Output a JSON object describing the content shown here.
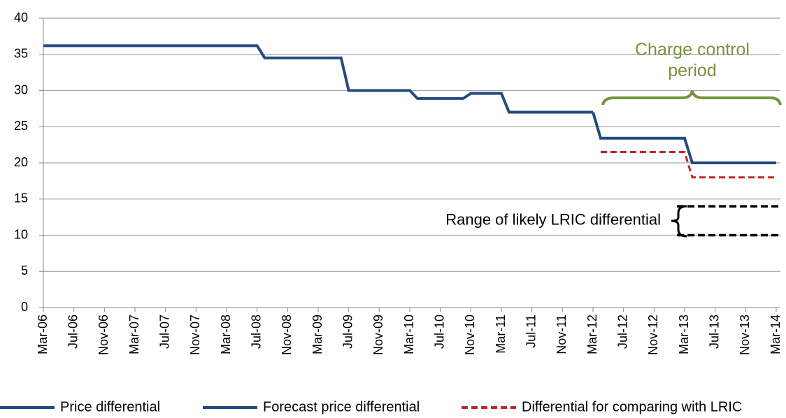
{
  "chart_data": {
    "type": "line",
    "ylim": [
      0,
      40
    ],
    "yticks": [
      0,
      5,
      10,
      15,
      20,
      25,
      30,
      35,
      40
    ],
    "xlim": [
      "2006-03",
      "2014-03"
    ],
    "xticks": [
      {
        "value": "2006-03",
        "label": "Mar-06"
      },
      {
        "value": "2006-07",
        "label": "Jul-06"
      },
      {
        "value": "2006-11",
        "label": "Nov-06"
      },
      {
        "value": "2007-03",
        "label": "Mar-07"
      },
      {
        "value": "2007-07",
        "label": "Jul-07"
      },
      {
        "value": "2007-11",
        "label": "Nov-07"
      },
      {
        "value": "2008-03",
        "label": "Mar-08"
      },
      {
        "value": "2008-07",
        "label": "Jul-08"
      },
      {
        "value": "2008-11",
        "label": "Nov-08"
      },
      {
        "value": "2009-03",
        "label": "Mar-09"
      },
      {
        "value": "2009-07",
        "label": "Jul-09"
      },
      {
        "value": "2009-11",
        "label": "Nov-09"
      },
      {
        "value": "2010-03",
        "label": "Mar-10"
      },
      {
        "value": "2010-07",
        "label": "Jul-10"
      },
      {
        "value": "2010-11",
        "label": "Nov-10"
      },
      {
        "value": "2011-03",
        "label": "Mar-11"
      },
      {
        "value": "2011-07",
        "label": "Jul-11"
      },
      {
        "value": "2011-11",
        "label": "Nov-11"
      },
      {
        "value": "2012-03",
        "label": "Mar-12"
      },
      {
        "value": "2012-07",
        "label": "Jul-12"
      },
      {
        "value": "2012-11",
        "label": "Nov-12"
      },
      {
        "value": "2013-03",
        "label": "Mar-13"
      },
      {
        "value": "2013-07",
        "label": "Jul-13"
      },
      {
        "value": "2013-11",
        "label": "Nov-13"
      },
      {
        "value": "2014-03",
        "label": "Mar-14"
      }
    ],
    "grid": true,
    "series": [
      {
        "name": "Price differential",
        "color": "#254a80",
        "style": "solid",
        "x": [
          "2006-03",
          "2008-07",
          "2008-08",
          "2009-06",
          "2009-07",
          "2010-03",
          "2010-04",
          "2010-10",
          "2010-11",
          "2011-03",
          "2011-04",
          "2012-03"
        ],
        "values": [
          36.2,
          36.2,
          34.5,
          34.5,
          30,
          30,
          28.9,
          28.9,
          29.6,
          29.6,
          27,
          27
        ]
      },
      {
        "name": "Forecast price differential",
        "color": "#254a80",
        "style": "solid",
        "x": [
          "2012-03",
          "2012-04",
          "2013-03",
          "2013-04",
          "2014-03"
        ],
        "values": [
          27,
          23.4,
          23.4,
          20,
          20
        ]
      },
      {
        "name": "Differential for comparing with LRIC",
        "color": "#c0282d",
        "style": "dashed",
        "x": [
          "2012-04",
          "2013-03",
          "2013-04",
          "2014-03"
        ],
        "values": [
          21.5,
          21.5,
          18,
          18
        ]
      }
    ],
    "annotations": [
      {
        "text": "Charge control period",
        "color": "#77933c"
      },
      {
        "text": "Range of likely LRIC differential",
        "values": [
          14,
          10
        ],
        "x": [
          "2013-02",
          "2014-03"
        ],
        "color": "#000000"
      }
    ]
  }
}
